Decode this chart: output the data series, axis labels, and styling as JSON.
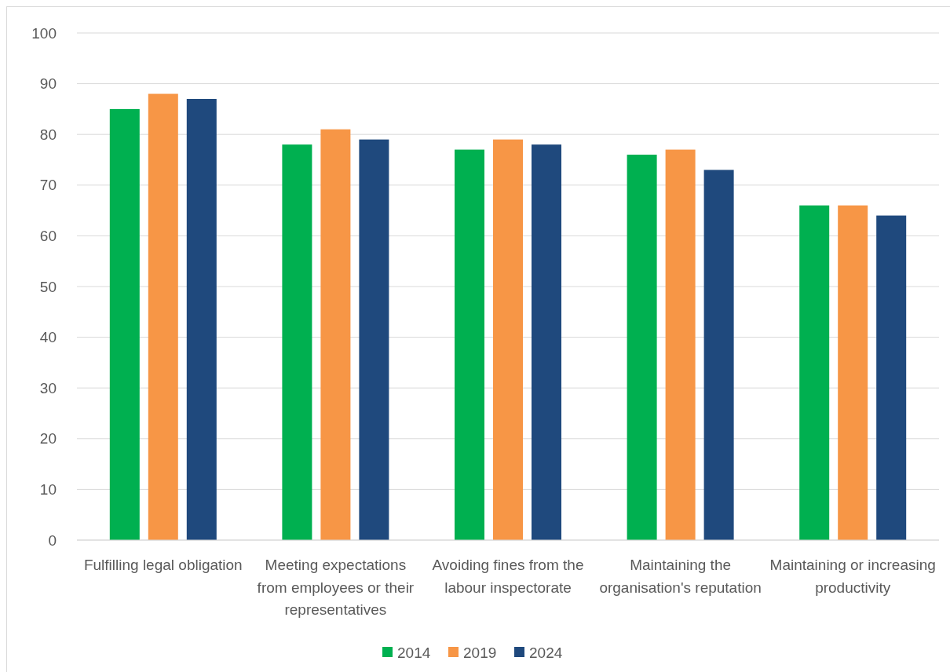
{
  "chart_data": {
    "type": "bar",
    "categories": [
      "Fulfilling legal obligation",
      "Meeting expectations from employees or their representatives",
      "Avoiding fines from the labour inspectorate",
      "Maintaining the organisation's reputation",
      "Maintaining or increasing productivity"
    ],
    "series": [
      {
        "name": "2014",
        "color": "#00b050",
        "values": [
          85,
          78,
          77,
          76,
          66
        ]
      },
      {
        "name": "2019",
        "color": "#f79646",
        "values": [
          88,
          81,
          79,
          77,
          66
        ]
      },
      {
        "name": "2024",
        "color": "#1f497d",
        "values": [
          87,
          79,
          78,
          73,
          64
        ]
      }
    ],
    "ylim": [
      0,
      100
    ],
    "yticks": [
      0,
      10,
      20,
      30,
      40,
      50,
      60,
      70,
      80,
      90,
      100
    ],
    "grid": "y",
    "legend": "bottom"
  }
}
